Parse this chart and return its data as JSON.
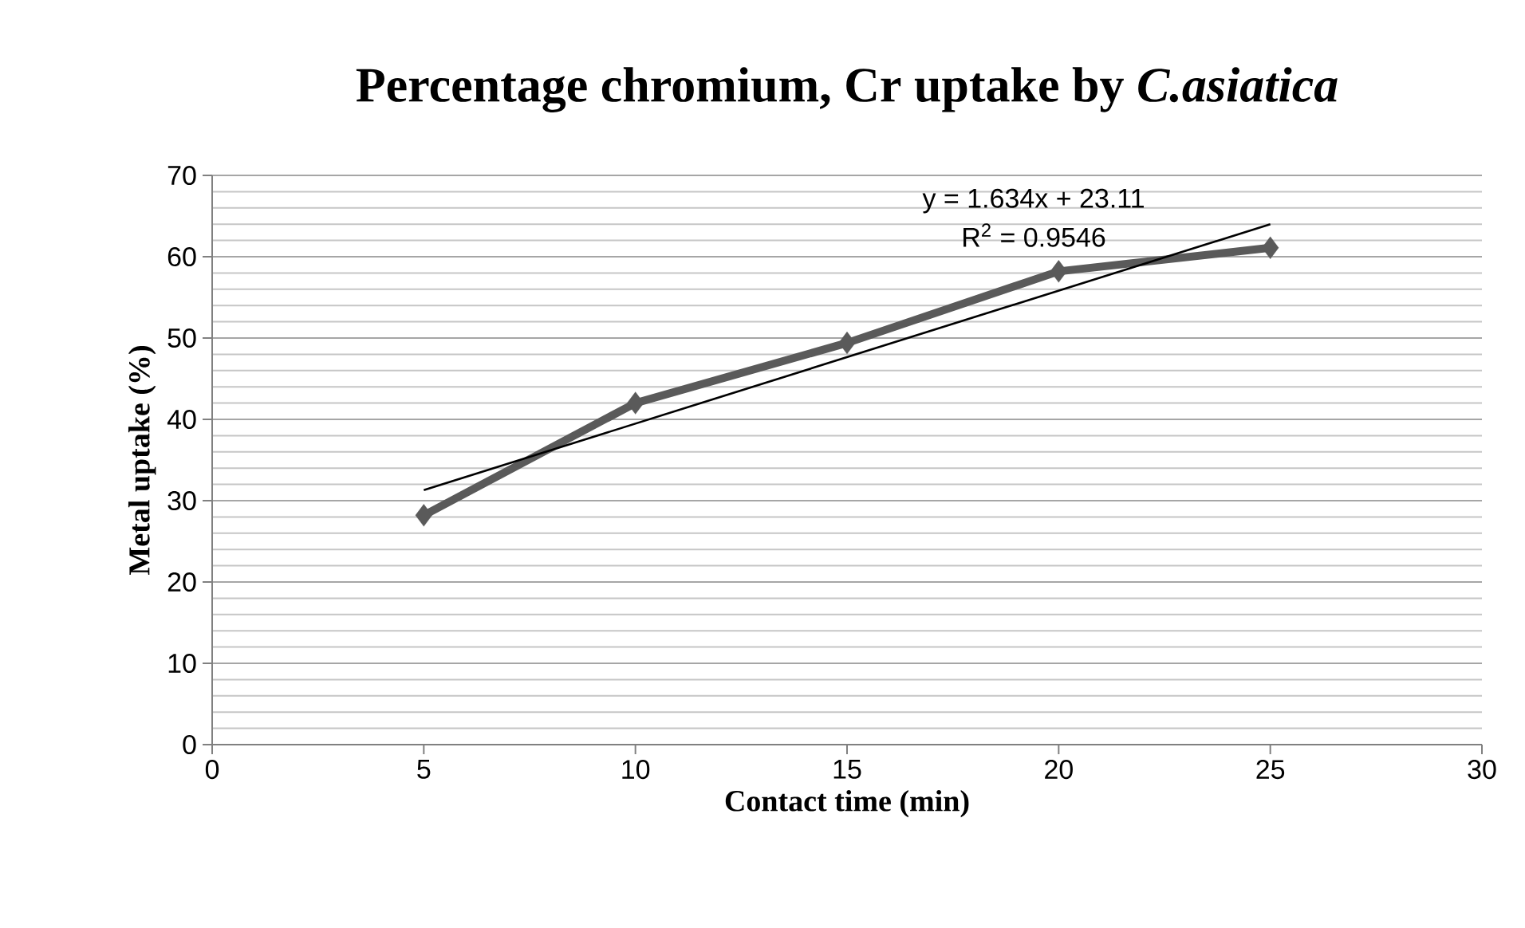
{
  "chart_data": {
    "type": "line",
    "title": "Percentage chromium, Cr uptake by *C.asiatica*",
    "xlabel": "Contact time (min)",
    "ylabel": "Metal uptake (%)",
    "series": [
      {
        "color": "#5a5a5a",
        "marker": "diamond",
        "x": [
          5,
          10,
          15,
          20,
          25
        ],
        "values": [
          28.2,
          42.0,
          49.4,
          58.2,
          61.1
        ]
      },
      {
        "color": "#000000",
        "marker": "none",
        "x": [
          5,
          25
        ],
        "values": [
          31.3,
          64.0
        ]
      }
    ],
    "xlim": [
      0,
      30
    ],
    "xticks": [
      0,
      5,
      10,
      15,
      20,
      25,
      30
    ],
    "ylim": [
      0,
      70
    ],
    "yticks": [
      0,
      10,
      20,
      30,
      40,
      50,
      60,
      70
    ],
    "grid": "y",
    "annotations": [
      "y = 1.634x + 23.11",
      "R$^{2}$ = 0.9546"
    ]
  }
}
